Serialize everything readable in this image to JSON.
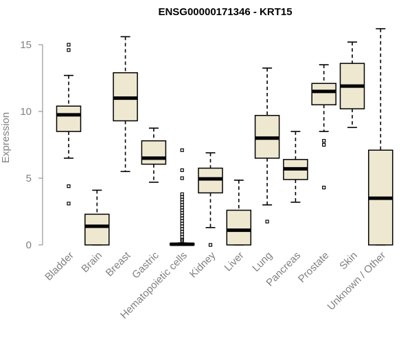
{
  "chart_data": {
    "type": "box",
    "title": "ENSG00000171346 - KRT15",
    "xlabel": "",
    "ylabel": "Expression",
    "ylim": [
      0,
      16
    ],
    "yticks": [
      0,
      5,
      10,
      15
    ],
    "categories": [
      "Bladder",
      "Brain",
      "Breast",
      "Gastric",
      "Hematopoietic cells",
      "Kidney",
      "Liver",
      "Lung",
      "Pancreas",
      "Prostate",
      "Skin",
      "Unknown / Other"
    ],
    "series": [
      {
        "name": "Bladder",
        "whisker_low": 6.5,
        "q1": 8.5,
        "median": 9.75,
        "q3": 10.4,
        "whisker_high": 12.7,
        "outliers": [
          15.0,
          14.6,
          4.4,
          3.1
        ]
      },
      {
        "name": "Brain",
        "whisker_low": 0.0,
        "q1": 0.0,
        "median": 1.4,
        "q3": 2.3,
        "whisker_high": 4.1,
        "outliers": []
      },
      {
        "name": "Breast",
        "whisker_low": 5.5,
        "q1": 9.3,
        "median": 11.0,
        "q3": 12.9,
        "whisker_high": 15.6,
        "outliers": []
      },
      {
        "name": "Gastric",
        "whisker_low": 4.7,
        "q1": 6.05,
        "median": 6.5,
        "q3": 7.8,
        "whisker_high": 8.75,
        "outliers": []
      },
      {
        "name": "Hematopoietic cells",
        "whisker_low": 0.0,
        "q1": 0.0,
        "median": 0.05,
        "q3": 0.1,
        "whisker_high": 0.15,
        "outliers": [
          7.1,
          5.6,
          5.0,
          3.8,
          3.6,
          3.4,
          3.2,
          3.0,
          2.8,
          2.6,
          2.4,
          2.2,
          2.0,
          1.8,
          1.6,
          1.4,
          1.2,
          1.0,
          0.8,
          0.6,
          0.4,
          0.3
        ]
      },
      {
        "name": "Kidney",
        "whisker_low": 1.3,
        "q1": 3.9,
        "median": 4.95,
        "q3": 5.75,
        "whisker_high": 6.9,
        "outliers": [
          0.0
        ]
      },
      {
        "name": "Liver",
        "whisker_low": 0.0,
        "q1": 0.0,
        "median": 1.1,
        "q3": 2.6,
        "whisker_high": 4.85,
        "outliers": []
      },
      {
        "name": "Lung",
        "whisker_low": 3.0,
        "q1": 6.5,
        "median": 8.0,
        "q3": 9.7,
        "whisker_high": 13.25,
        "outliers": [
          1.75
        ]
      },
      {
        "name": "Pancreas",
        "whisker_low": 3.2,
        "q1": 4.9,
        "median": 5.7,
        "q3": 6.4,
        "whisker_high": 8.5,
        "outliers": []
      },
      {
        "name": "Prostate",
        "whisker_low": 8.5,
        "q1": 10.5,
        "median": 11.5,
        "q3": 12.1,
        "whisker_high": 13.5,
        "outliers": [
          7.8,
          7.5,
          4.3
        ]
      },
      {
        "name": "Skin",
        "whisker_low": 8.8,
        "q1": 10.2,
        "median": 11.9,
        "q3": 13.6,
        "whisker_high": 15.2,
        "outliers": []
      },
      {
        "name": "Unknown / Other",
        "whisker_low": 0.0,
        "q1": 0.0,
        "median": 3.5,
        "q3": 7.1,
        "whisker_high": 16.2,
        "outliers": []
      }
    ],
    "grid": false,
    "box_fill": "#efe8d1"
  }
}
